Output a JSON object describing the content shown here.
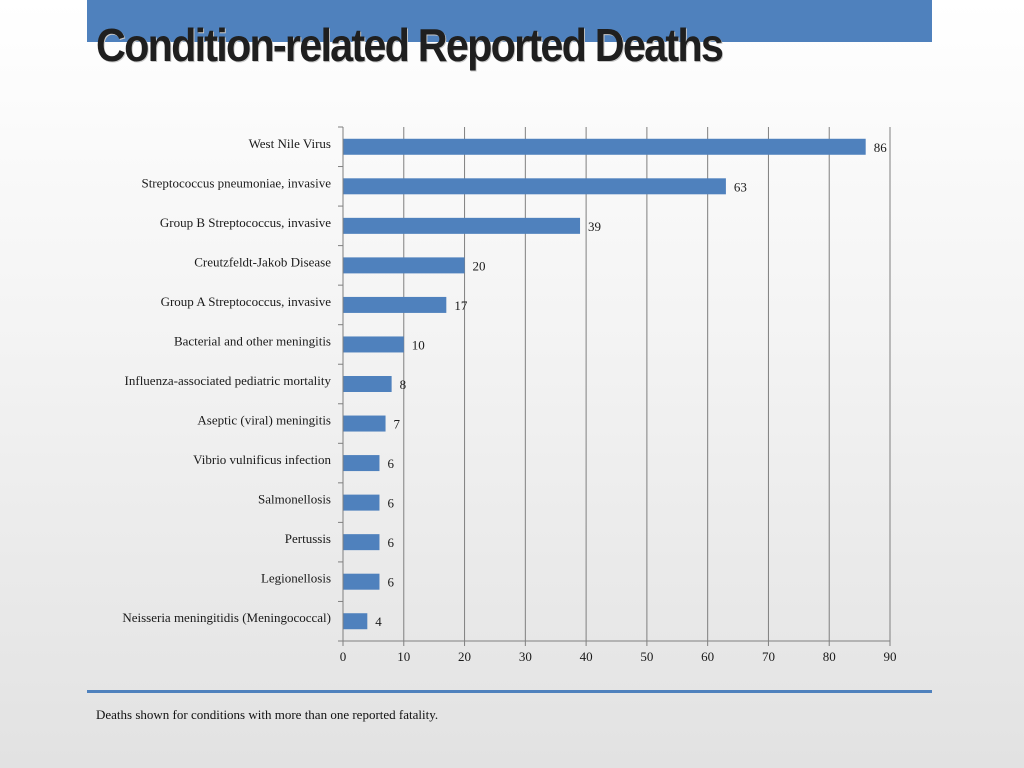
{
  "slide": {
    "title": "Condition-related Reported Deaths",
    "footnote": "Deaths shown for conditions with more than one reported fatality."
  },
  "colors": {
    "accent": "#4f81bd",
    "bar": "#4f81bd",
    "grid": "#7f7f7f",
    "text": "#1a1a1a"
  },
  "chart_data": {
    "type": "bar",
    "orientation": "horizontal",
    "categories": [
      "West Nile Virus",
      "Streptococcus pneumoniae, invasive",
      "Group B Streptococcus, invasive",
      "Creutzfeldt-Jakob Disease",
      "Group A Streptococcus, invasive",
      "Bacterial and other meningitis",
      "Influenza-associated pediatric mortality",
      "Aseptic (viral) meningitis",
      "Vibrio vulnificus infection",
      "Salmonellosis",
      "Pertussis",
      "Legionellosis",
      "Neisseria meningitidis (Meningococcal)"
    ],
    "values": [
      86,
      63,
      39,
      20,
      17,
      10,
      8,
      7,
      6,
      6,
      6,
      6,
      4
    ],
    "xlim": [
      0,
      90
    ],
    "xticks": [
      0,
      10,
      20,
      30,
      40,
      50,
      60,
      70,
      80,
      90
    ],
    "grid": true,
    "data_labels": true,
    "legend": "none"
  }
}
